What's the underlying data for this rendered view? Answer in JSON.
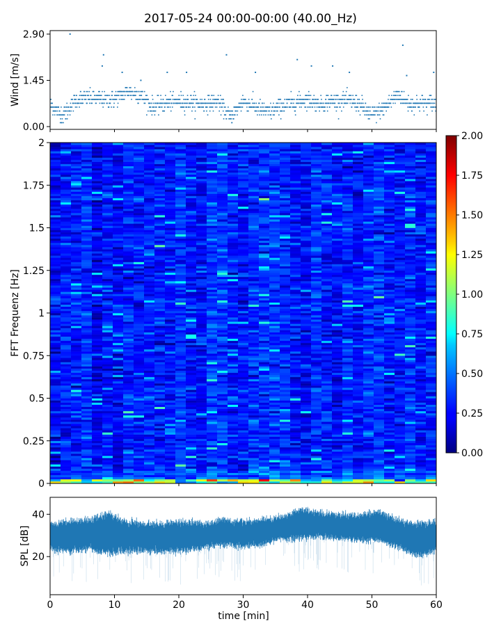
{
  "title": "2017-05-24 00:00-00:00 (40.00_Hz)",
  "chart_data": [
    {
      "type": "scatter",
      "panel": "wind",
      "ylabel": "Wind [m/s]",
      "xlim": [
        0,
        60
      ],
      "ylim": [
        0,
        2.9
      ],
      "yticks": [
        0,
        1.45,
        2.9
      ],
      "ytick_labels": [
        "0.00",
        "1.45",
        "2.90"
      ],
      "marker_color": "#1f77b4",
      "value_step": 0.122,
      "approx_profile": {
        "x_min": [
          0,
          2,
          4,
          6,
          8,
          10,
          12,
          14,
          16,
          18,
          20,
          22,
          24,
          26,
          28,
          30,
          32,
          34,
          36,
          38,
          40,
          42,
          44,
          46,
          48,
          50,
          52,
          54,
          56,
          58,
          60
        ],
        "wind_ms": [
          0.7,
          0.35,
          0.85,
          0.9,
          0.85,
          0.85,
          1.1,
          1.0,
          0.6,
          0.75,
          0.8,
          0.75,
          0.7,
          0.8,
          0.3,
          0.8,
          0.6,
          0.45,
          0.65,
          0.75,
          0.85,
          0.7,
          0.8,
          0.8,
          0.7,
          0.35,
          0.6,
          1.0,
          0.7,
          0.75,
          0.7
        ]
      },
      "peaks": [
        {
          "x": 3.1,
          "y": 2.9
        },
        {
          "x": 8.3,
          "y": 2.25
        },
        {
          "x": 8.1,
          "y": 1.9
        },
        {
          "x": 11.2,
          "y": 1.7
        },
        {
          "x": 14.1,
          "y": 1.45
        },
        {
          "x": 18.2,
          "y": 1.7
        },
        {
          "x": 21.2,
          "y": 1.7
        },
        {
          "x": 27.4,
          "y": 2.25
        },
        {
          "x": 31.9,
          "y": 1.7
        },
        {
          "x": 38.4,
          "y": 2.1
        },
        {
          "x": 40.6,
          "y": 1.9
        },
        {
          "x": 43.9,
          "y": 1.9
        },
        {
          "x": 46.5,
          "y": 1.7
        },
        {
          "x": 54.8,
          "y": 2.55
        },
        {
          "x": 55.4,
          "y": 1.6
        },
        {
          "x": 59.6,
          "y": 1.7
        }
      ]
    },
    {
      "type": "heatmap",
      "panel": "spectrogram",
      "ylabel": "FFT Frequenz [Hz]",
      "xlim": [
        0,
        60
      ],
      "ylim": [
        0,
        2
      ],
      "yticks": [
        0,
        0.25,
        0.5,
        0.75,
        1,
        1.25,
        1.5,
        1.75,
        2
      ],
      "ytick_labels": [
        "0",
        "0.25",
        "0.5",
        "0.75",
        "1",
        "1.25",
        "1.5",
        "1.75",
        "2"
      ],
      "colormap": "jet",
      "clim": [
        0,
        2
      ],
      "colorbar_ticks": [
        0,
        0.25,
        0.5,
        0.75,
        1,
        1.25,
        1.5,
        1.75,
        2
      ],
      "colorbar_tick_labels": [
        "0.00",
        "0.25",
        "0.50",
        "0.75",
        "1.00",
        "1.25",
        "1.50",
        "1.75",
        "2.00"
      ],
      "typical_value": 0.3,
      "low_frequency_band_value": 1.0
    },
    {
      "type": "area",
      "panel": "spl",
      "ylabel": "SPL [dB]",
      "xlabel": "time [min]",
      "xlim": [
        0,
        60
      ],
      "ylim": [
        2,
        48
      ],
      "xticks": [
        0,
        10,
        20,
        30,
        40,
        50,
        60
      ],
      "yticks": [
        20,
        40
      ],
      "color": "#1f77b4",
      "envelope": {
        "x_min": [
          0,
          3,
          6,
          9,
          12,
          15,
          18,
          21,
          24,
          27,
          30,
          33,
          36,
          39,
          42,
          45,
          48,
          51,
          54,
          57,
          60
        ],
        "upper_db": [
          36,
          37,
          38,
          41,
          37,
          36,
          36,
          37,
          36,
          38,
          37,
          38,
          39,
          43,
          41,
          40,
          40,
          42,
          38,
          36,
          37
        ],
        "lower_db": [
          23,
          22,
          23,
          21,
          22,
          22,
          22,
          22,
          24,
          25,
          24,
          25,
          28,
          28,
          29,
          28,
          27,
          27,
          24,
          20,
          22
        ]
      }
    }
  ]
}
